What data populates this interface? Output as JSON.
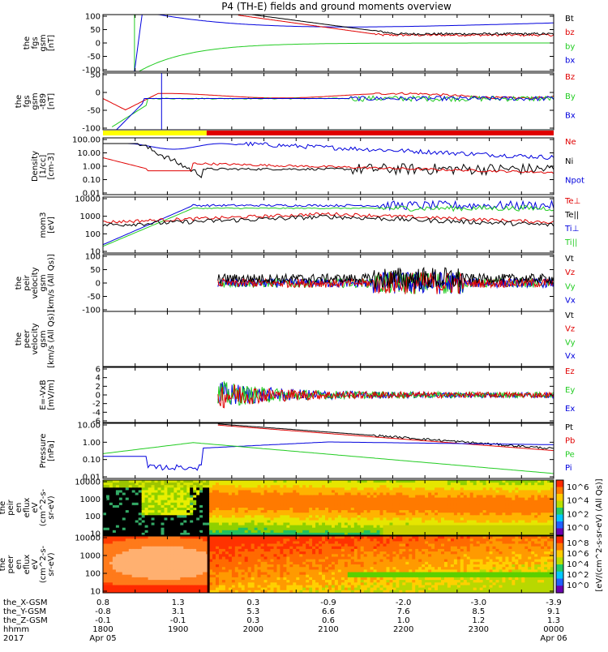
{
  "title": "P4 (TH-E) fields and ground moments overview",
  "colors": {
    "black": "#000000",
    "red": "#e00000",
    "green": "#22cc22",
    "blue": "#0000dd",
    "yellow": "#ffff00"
  },
  "chart_data": [
    {
      "type": "line",
      "ylabel": [
        "the",
        "fgs",
        "gsm",
        "[nT]"
      ],
      "yticks": [
        "100",
        "50",
        "0",
        "-50",
        "-100"
      ],
      "ylim": [
        -100,
        100
      ],
      "series": [
        {
          "name": "Bt",
          "color": "#000000"
        },
        {
          "name": "bz",
          "color": "#e00000"
        },
        {
          "name": "by",
          "color": "#22cc22"
        },
        {
          "name": "bx",
          "color": "#0000dd"
        }
      ]
    },
    {
      "type": "line",
      "ylabel": [
        "the",
        "fgs",
        "gsm",
        "-t89",
        "[nT]"
      ],
      "yticks": [
        "50",
        "0",
        "-50",
        "-100"
      ],
      "ylim": [
        -120,
        70
      ],
      "series": [
        {
          "name": "Bz",
          "color": "#e00000"
        },
        {
          "name": "By",
          "color": "#22cc22"
        },
        {
          "name": "Bx",
          "color": "#0000dd"
        }
      ]
    },
    {
      "type": "line",
      "ylabel": [
        "Density",
        "[1/cc]",
        "[cm-3]"
      ],
      "yticks": [
        "100.00",
        "10.00",
        "1.00",
        "0.10",
        "0.01"
      ],
      "series": [
        {
          "name": "Ne",
          "color": "#e00000"
        },
        {
          "name": "Ni",
          "color": "#000000"
        },
        {
          "name": "Npot",
          "color": "#0000dd"
        }
      ]
    },
    {
      "type": "line",
      "ylabel": [
        "mom3",
        "[eV]"
      ],
      "yticks": [
        "10000",
        "1000",
        "100",
        "10"
      ],
      "series": [
        {
          "name": "Te⊥",
          "color": "#e00000"
        },
        {
          "name": "Te||",
          "color": "#000000"
        },
        {
          "name": "Ti⊥",
          "color": "#0000dd"
        },
        {
          "name": "Ti||",
          "color": "#22cc22"
        }
      ]
    },
    {
      "type": "line",
      "ylabel": [
        "the",
        "peir",
        "velocity",
        "gsm",
        "[km/s (All Qs)]"
      ],
      "yticks": [
        "100",
        "50",
        "0",
        "-50",
        "-100"
      ],
      "ylim": [
        -100,
        100
      ],
      "series": [
        {
          "name": "Vt",
          "color": "#000000"
        },
        {
          "name": "Vz",
          "color": "#e00000"
        },
        {
          "name": "Vy",
          "color": "#22cc22"
        },
        {
          "name": "Vx",
          "color": "#0000dd"
        }
      ]
    },
    {
      "type": "line",
      "ylabel": [
        "the",
        "peer",
        "velocity",
        "gsm",
        "[km/s (All Qs)]"
      ],
      "yticks": [],
      "series": [
        {
          "name": "Vt",
          "color": "#000000"
        },
        {
          "name": "Vz",
          "color": "#e00000"
        },
        {
          "name": "Vy",
          "color": "#22cc22"
        },
        {
          "name": "Vx",
          "color": "#0000dd"
        }
      ]
    },
    {
      "type": "line",
      "ylabel": [
        "E=-VxB",
        "[mV/m]"
      ],
      "yticks": [
        "6",
        "4",
        "2",
        "0",
        "-2",
        "-4",
        "-6"
      ],
      "ylim": [
        -6,
        6
      ],
      "series": [
        {
          "name": "Ez",
          "color": "#e00000"
        },
        {
          "name": "Ey",
          "color": "#22cc22"
        },
        {
          "name": "Ex",
          "color": "#0000dd"
        }
      ]
    },
    {
      "type": "line",
      "ylabel": [
        "Pressure",
        "[nPa]"
      ],
      "yticks": [
        "10.00",
        "1.00",
        "0.10",
        "0.01"
      ],
      "series": [
        {
          "name": "Pt",
          "color": "#000000"
        },
        {
          "name": "Pb",
          "color": "#e00000"
        },
        {
          "name": "Pe",
          "color": "#22cc22"
        },
        {
          "name": "Pi",
          "color": "#0000dd"
        }
      ]
    },
    {
      "type": "heatmap",
      "ylabel": [
        "the",
        "peir",
        "en",
        "eflux",
        "eV",
        "(cm^2-s-",
        "sr-eV)"
      ],
      "yticks": [
        "10000",
        "1000",
        "100",
        "10"
      ],
      "colorbar_ticks": [
        "10^6",
        "10^4",
        "10^2",
        "10^0"
      ]
    },
    {
      "type": "heatmap",
      "ylabel": [
        "the",
        "peer",
        "en",
        "eflux",
        "eV",
        "(cm^2-s-",
        "sr-eV)"
      ],
      "yticks": [
        "10000",
        "1000",
        "100",
        "10"
      ],
      "colorbar_ticks": [
        "10^8",
        "10^6",
        "10^4",
        "10^2",
        "10^0"
      ],
      "colorbar_label": "[eV/(cm^2-s-sr-eV) (All Qs)]"
    }
  ],
  "xaxis": {
    "rows": [
      {
        "label": "the_X-GSM",
        "values": [
          "0.8",
          "1.3",
          "0.3",
          "-0.9",
          "-2.0",
          "-3.0",
          "-3.9"
        ]
      },
      {
        "label": "the_Y-GSM",
        "values": [
          "-0.8",
          "3.1",
          "5.3",
          "6.6",
          "7.6",
          "8.5",
          "9.1"
        ]
      },
      {
        "label": "the_Z-GSM",
        "values": [
          "-0.1",
          "-0.1",
          "0.3",
          "0.6",
          "1.0",
          "1.2",
          "1.3"
        ]
      },
      {
        "label": "hhmm",
        "values": [
          "1800",
          "1900",
          "2000",
          "2100",
          "2200",
          "2300",
          "0000"
        ]
      },
      {
        "label": "2017",
        "values": [
          "Apr 05",
          "",
          "",
          "",
          "",
          "",
          "Apr 06"
        ]
      }
    ]
  }
}
